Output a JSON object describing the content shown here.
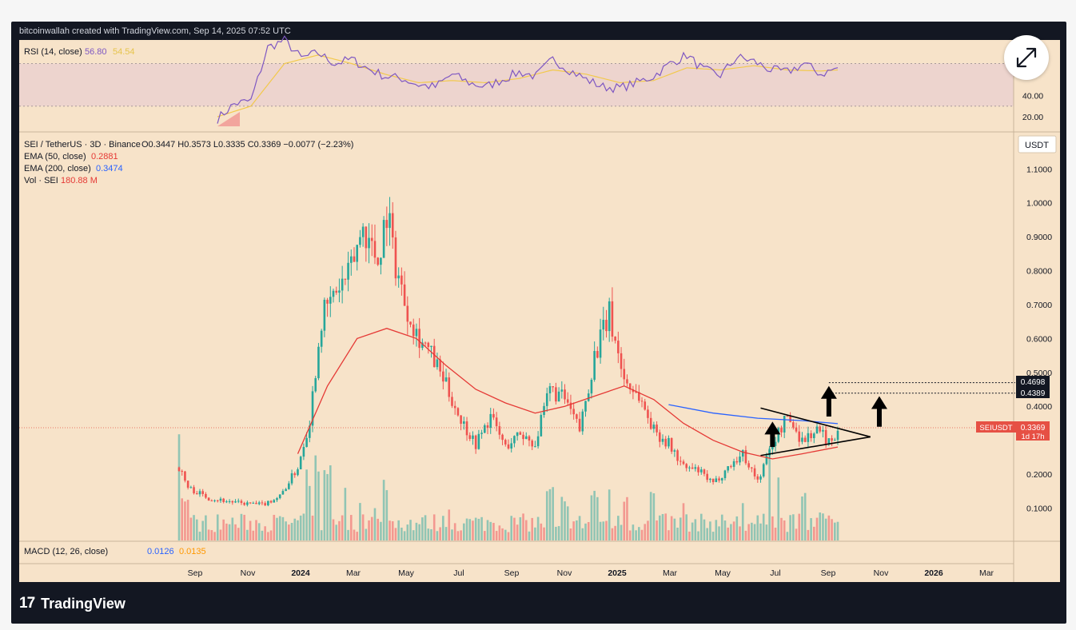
{
  "credit": "bitcoinwallah created with TradingView.com, Sep 14, 2025 07:52 UTC",
  "brand": {
    "logo": "17",
    "name": "TradingView"
  },
  "colors": {
    "panel_bg": "#f7e3c9",
    "rsi_line": "#7e57c2",
    "rsi_ma": "#f2c94c",
    "ema50": "#e53935",
    "ema200": "#2962ff",
    "up": "#26a69a",
    "down": "#ef5350",
    "vol_up": "#7fbfb0",
    "vol_down": "#f28b86",
    "last_price": "#e65044"
  },
  "rsi_panel": {
    "title": "RSI (14, close)",
    "value": "56.80",
    "ma_value": "54.54",
    "ticks": [
      {
        "value": 40,
        "label": "40.00"
      },
      {
        "value": 20,
        "label": "20.00"
      }
    ],
    "band": [
      30,
      70
    ]
  },
  "legend": {
    "symbol": "SEI / TetherUS · 3D · Binance",
    "ohlc": "O0.3447 H0.3573 L0.3335 C0.3369 −0.0077 (−2.23%)",
    "ema50_label": "EMA (50, close)",
    "ema50_value": "0.2881",
    "ema200_label": "EMA (200, close)",
    "ema200_value": "0.3474",
    "vol_label": "Vol · SEI",
    "vol_value": "180.88 M"
  },
  "macd": {
    "title": "MACD (12, 26, close)",
    "macd_value": "0.0126",
    "signal_value": "0.0135"
  },
  "currency_label": "USDT",
  "price_axis": [
    {
      "value": 1.1,
      "label": "1.1000"
    },
    {
      "value": 1.0,
      "label": "1.0000"
    },
    {
      "value": 0.9,
      "label": "0.9000"
    },
    {
      "value": 0.8,
      "label": "0.8000"
    },
    {
      "value": 0.7,
      "label": "0.7000"
    },
    {
      "value": 0.6,
      "label": "0.6000"
    },
    {
      "value": 0.5,
      "label": "0.5000"
    },
    {
      "value": 0.4,
      "label": "0.4000"
    },
    {
      "value": 0.2,
      "label": "0.2000"
    },
    {
      "value": 0.1,
      "label": "0.1000"
    }
  ],
  "time_axis": [
    {
      "label": "Sep",
      "bold": false
    },
    {
      "label": "Nov",
      "bold": false
    },
    {
      "label": "2024",
      "bold": true
    },
    {
      "label": "Mar",
      "bold": false
    },
    {
      "label": "May",
      "bold": false
    },
    {
      "label": "Jul",
      "bold": false
    },
    {
      "label": "Sep",
      "bold": false
    },
    {
      "label": "Nov",
      "bold": false
    },
    {
      "label": "2025",
      "bold": true
    },
    {
      "label": "Mar",
      "bold": false
    },
    {
      "label": "May",
      "bold": false
    },
    {
      "label": "Jul",
      "bold": false
    },
    {
      "label": "Sep",
      "bold": false
    },
    {
      "label": "Nov",
      "bold": false
    },
    {
      "label": "2026",
      "bold": true
    },
    {
      "label": "Mar",
      "bold": false
    }
  ],
  "price_tags": {
    "target1": "0.4698",
    "target2": "0.4389",
    "last_symbol": "SEIUSDT",
    "last_value": "0.3369",
    "countdown": "1d 17h"
  },
  "chart_data": {
    "type": "candlestick",
    "symbol": "SEI / TetherUS",
    "interval": "3D",
    "exchange": "Binance",
    "price_path": [
      [
        0,
        0.22
      ],
      [
        3,
        0.16
      ],
      [
        10,
        0.13
      ],
      [
        20,
        0.115
      ],
      [
        28,
        0.11
      ],
      [
        34,
        0.135
      ],
      [
        40,
        0.22
      ],
      [
        44,
        0.36
      ],
      [
        48,
        0.66
      ],
      [
        53,
        0.74
      ],
      [
        57,
        0.78
      ],
      [
        62,
        0.93
      ],
      [
        67,
        0.83
      ],
      [
        70,
        0.98
      ],
      [
        73,
        0.82
      ],
      [
        76,
        0.71
      ],
      [
        80,
        0.62
      ],
      [
        85,
        0.55
      ],
      [
        90,
        0.46
      ],
      [
        95,
        0.36
      ],
      [
        100,
        0.29
      ],
      [
        105,
        0.37
      ],
      [
        110,
        0.28
      ],
      [
        115,
        0.32
      ],
      [
        120,
        0.29
      ],
      [
        125,
        0.45
      ],
      [
        130,
        0.42
      ],
      [
        135,
        0.33
      ],
      [
        140,
        0.55
      ],
      [
        145,
        0.67
      ],
      [
        150,
        0.48
      ],
      [
        155,
        0.43
      ],
      [
        160,
        0.33
      ],
      [
        165,
        0.29
      ],
      [
        170,
        0.22
      ],
      [
        175,
        0.21
      ],
      [
        180,
        0.17
      ],
      [
        185,
        0.22
      ],
      [
        190,
        0.26
      ],
      [
        195,
        0.18
      ],
      [
        200,
        0.29
      ],
      [
        205,
        0.37
      ],
      [
        210,
        0.3
      ],
      [
        215,
        0.33
      ],
      [
        220,
        0.29
      ],
      [
        222,
        0.34
      ]
    ],
    "ema50_path": [
      [
        40,
        0.26
      ],
      [
        50,
        0.46
      ],
      [
        60,
        0.6
      ],
      [
        70,
        0.63
      ],
      [
        80,
        0.6
      ],
      [
        90,
        0.52
      ],
      [
        100,
        0.45
      ],
      [
        110,
        0.41
      ],
      [
        120,
        0.38
      ],
      [
        130,
        0.4
      ],
      [
        140,
        0.43
      ],
      [
        150,
        0.46
      ],
      [
        160,
        0.42
      ],
      [
        170,
        0.35
      ],
      [
        180,
        0.3
      ],
      [
        190,
        0.265
      ],
      [
        200,
        0.245
      ],
      [
        210,
        0.26
      ],
      [
        222,
        0.28
      ]
    ],
    "ema200_path": [
      [
        165,
        0.405
      ],
      [
        180,
        0.38
      ],
      [
        195,
        0.365
      ],
      [
        210,
        0.358
      ],
      [
        222,
        0.349
      ]
    ],
    "rsi_path": [
      [
        0,
        18
      ],
      [
        5,
        32
      ],
      [
        10,
        35
      ],
      [
        15,
        85
      ],
      [
        20,
        92
      ],
      [
        25,
        75
      ],
      [
        30,
        80
      ],
      [
        35,
        70
      ],
      [
        40,
        74
      ],
      [
        45,
        65
      ],
      [
        50,
        58
      ],
      [
        55,
        56
      ],
      [
        60,
        50
      ],
      [
        65,
        48
      ],
      [
        70,
        60
      ],
      [
        75,
        52
      ],
      [
        80,
        48
      ],
      [
        85,
        55
      ],
      [
        90,
        62
      ],
      [
        95,
        58
      ],
      [
        100,
        74
      ],
      [
        105,
        64
      ],
      [
        110,
        55
      ],
      [
        115,
        48
      ],
      [
        120,
        47
      ],
      [
        125,
        52
      ],
      [
        130,
        58
      ],
      [
        135,
        70
      ],
      [
        140,
        78
      ],
      [
        145,
        64
      ],
      [
        150,
        59
      ],
      [
        155,
        76
      ],
      [
        160,
        72
      ],
      [
        165,
        64
      ],
      [
        170,
        62
      ],
      [
        175,
        70
      ],
      [
        180,
        60
      ],
      [
        185,
        66
      ]
    ],
    "rsi_ma_path": [
      [
        0,
        20
      ],
      [
        10,
        30
      ],
      [
        20,
        70
      ],
      [
        30,
        78
      ],
      [
        40,
        70
      ],
      [
        50,
        60
      ],
      [
        60,
        52
      ],
      [
        70,
        54
      ],
      [
        80,
        52
      ],
      [
        90,
        56
      ],
      [
        100,
        64
      ],
      [
        110,
        60
      ],
      [
        120,
        52
      ],
      [
        130,
        54
      ],
      [
        140,
        66
      ],
      [
        150,
        64
      ],
      [
        160,
        68
      ],
      [
        170,
        64
      ],
      [
        180,
        63
      ],
      [
        185,
        64
      ]
    ],
    "vol_up": [
      [
        0,
        0.95
      ],
      [
        44,
        0.6
      ],
      [
        46,
        0.72
      ],
      [
        50,
        0.65
      ],
      [
        55,
        0.48
      ],
      [
        60,
        0.4
      ],
      [
        65,
        0.35
      ],
      [
        70,
        0.55
      ],
      [
        125,
        0.45
      ],
      [
        130,
        0.38
      ],
      [
        140,
        0.45
      ],
      [
        145,
        0.48
      ],
      [
        160,
        0.43
      ],
      [
        190,
        0.38
      ],
      [
        200,
        0.95
      ],
      [
        203,
        0.65
      ],
      [
        210,
        0.42
      ],
      [
        215,
        0.3
      ],
      [
        222,
        0.15
      ]
    ],
    "vol_down": [
      [
        2,
        0.4
      ],
      [
        48,
        0.5
      ],
      [
        75,
        0.4
      ],
      [
        90,
        0.3
      ],
      [
        150,
        0.42
      ],
      [
        170,
        0.34
      ],
      [
        195,
        0.2
      ],
      [
        218,
        0.25
      ]
    ],
    "triangle": {
      "upper": [
        [
          196,
          0.395
        ],
        [
          233,
          0.31
        ]
      ],
      "lower": [
        [
          196,
          0.255
        ],
        [
          233,
          0.31
        ]
      ]
    },
    "arrows": [
      {
        "x": 200,
        "from": 0.28,
        "to": 0.355
      },
      {
        "x": 219,
        "from": 0.37,
        "to": 0.46
      },
      {
        "x": 236,
        "from": 0.34,
        "to": 0.43
      }
    ],
    "targets": [
      0.4698,
      0.4389
    ],
    "last_price": 0.3369
  }
}
